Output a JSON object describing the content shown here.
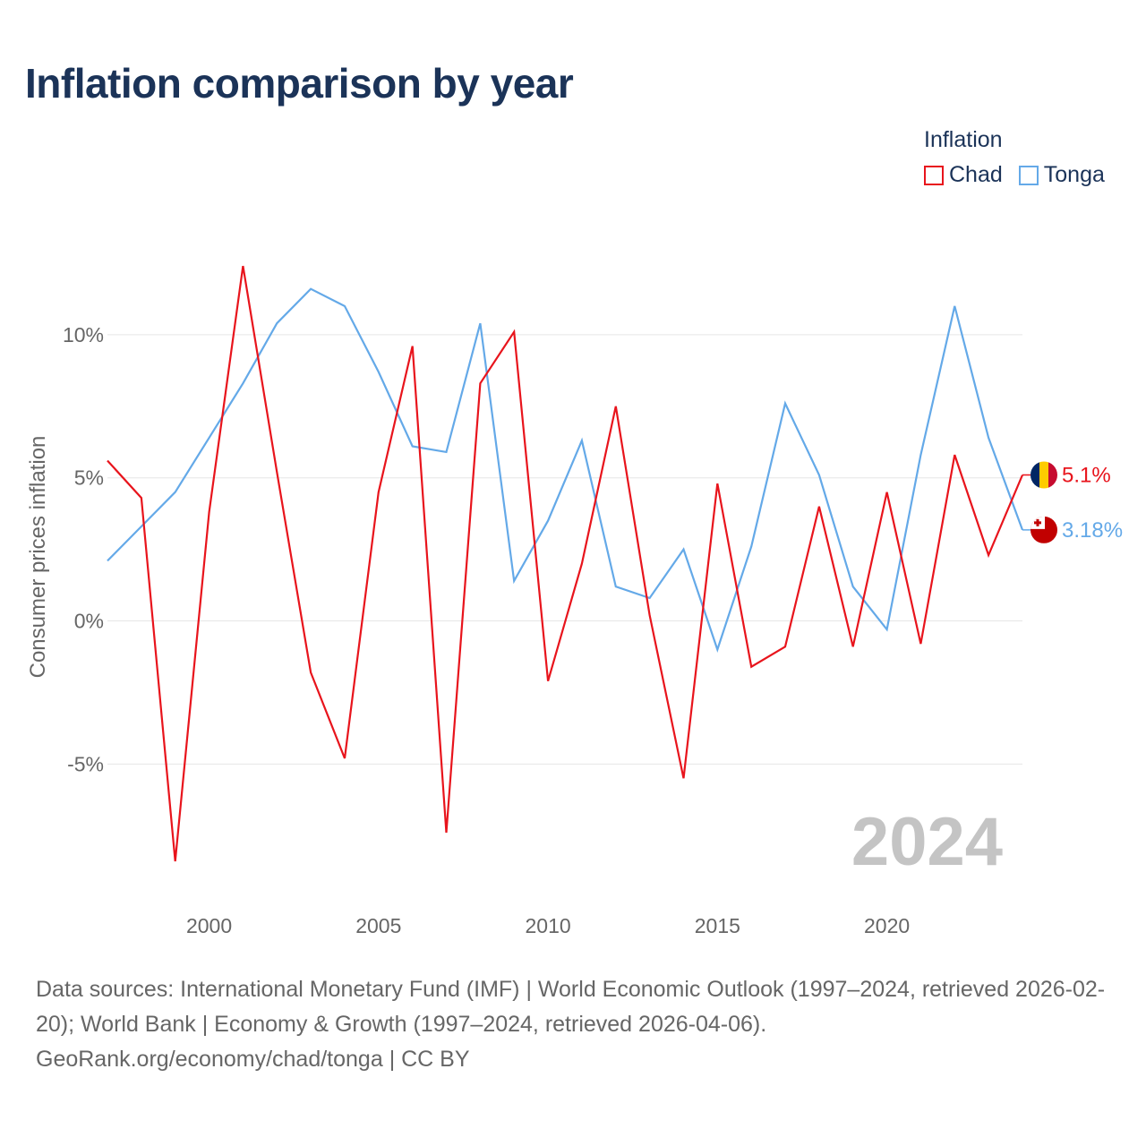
{
  "title": "Inflation comparison by year",
  "legend": {
    "title": "Inflation",
    "items": [
      {
        "label": "Chad",
        "color": "#e8141c"
      },
      {
        "label": "Tonga",
        "color": "#64a9e8"
      }
    ]
  },
  "footer": {
    "sources": "Data sources: International Monetary Fund (IMF) | World Economic Outlook (1997–2024, retrieved 2026-02-20); World Bank | Economy & Growth (1997–2024, retrieved 2026-04-06).",
    "credit": "GeoRank.org/economy/chad/tonga | CC BY"
  },
  "chart_data": {
    "type": "line",
    "title": "Inflation comparison by year",
    "xlabel": "",
    "ylabel": "Consumer prices inflation",
    "year_watermark": "2024",
    "xlim": [
      1997,
      2024
    ],
    "ylim": [
      -9.9,
      14.5
    ],
    "grid": true,
    "legend_position": "top-right",
    "x_ticks": [
      2000,
      2005,
      2010,
      2015,
      2020
    ],
    "x_tick_labels": [
      "2000",
      "2005",
      "2010",
      "2015",
      "2020"
    ],
    "y_ticks": [
      -5,
      0,
      5,
      10
    ],
    "y_tick_labels": [
      "-5%",
      "0%",
      "5%",
      "10%"
    ],
    "x": [
      1997,
      1998,
      1999,
      2000,
      2001,
      2002,
      2003,
      2004,
      2005,
      2006,
      2007,
      2008,
      2009,
      2010,
      2011,
      2012,
      2013,
      2014,
      2015,
      2016,
      2017,
      2018,
      2019,
      2020,
      2021,
      2022,
      2023,
      2024
    ],
    "series": [
      {
        "name": "Chad",
        "color": "#e8141c",
        "end_label": "5.1%",
        "flag": "chad-flag",
        "values": [
          5.6,
          4.3,
          -8.4,
          3.8,
          12.4,
          5.2,
          -1.8,
          -4.8,
          4.5,
          9.6,
          -7.4,
          8.3,
          10.1,
          -2.1,
          2.0,
          7.5,
          0.2,
          -5.5,
          4.8,
          -1.6,
          -0.9,
          4.0,
          -0.9,
          4.5,
          -0.8,
          5.8,
          2.3,
          5.1
        ]
      },
      {
        "name": "Tonga",
        "color": "#64a9e8",
        "end_label": "3.18%",
        "flag": "tonga-flag",
        "values": [
          2.1,
          3.3,
          4.5,
          6.4,
          8.3,
          10.4,
          11.6,
          11.0,
          8.7,
          6.1,
          5.9,
          10.4,
          1.4,
          3.5,
          6.3,
          1.2,
          0.8,
          2.5,
          -1.0,
          2.6,
          7.6,
          5.1,
          1.2,
          -0.3,
          5.8,
          11.0,
          6.4,
          3.18
        ]
      }
    ]
  }
}
